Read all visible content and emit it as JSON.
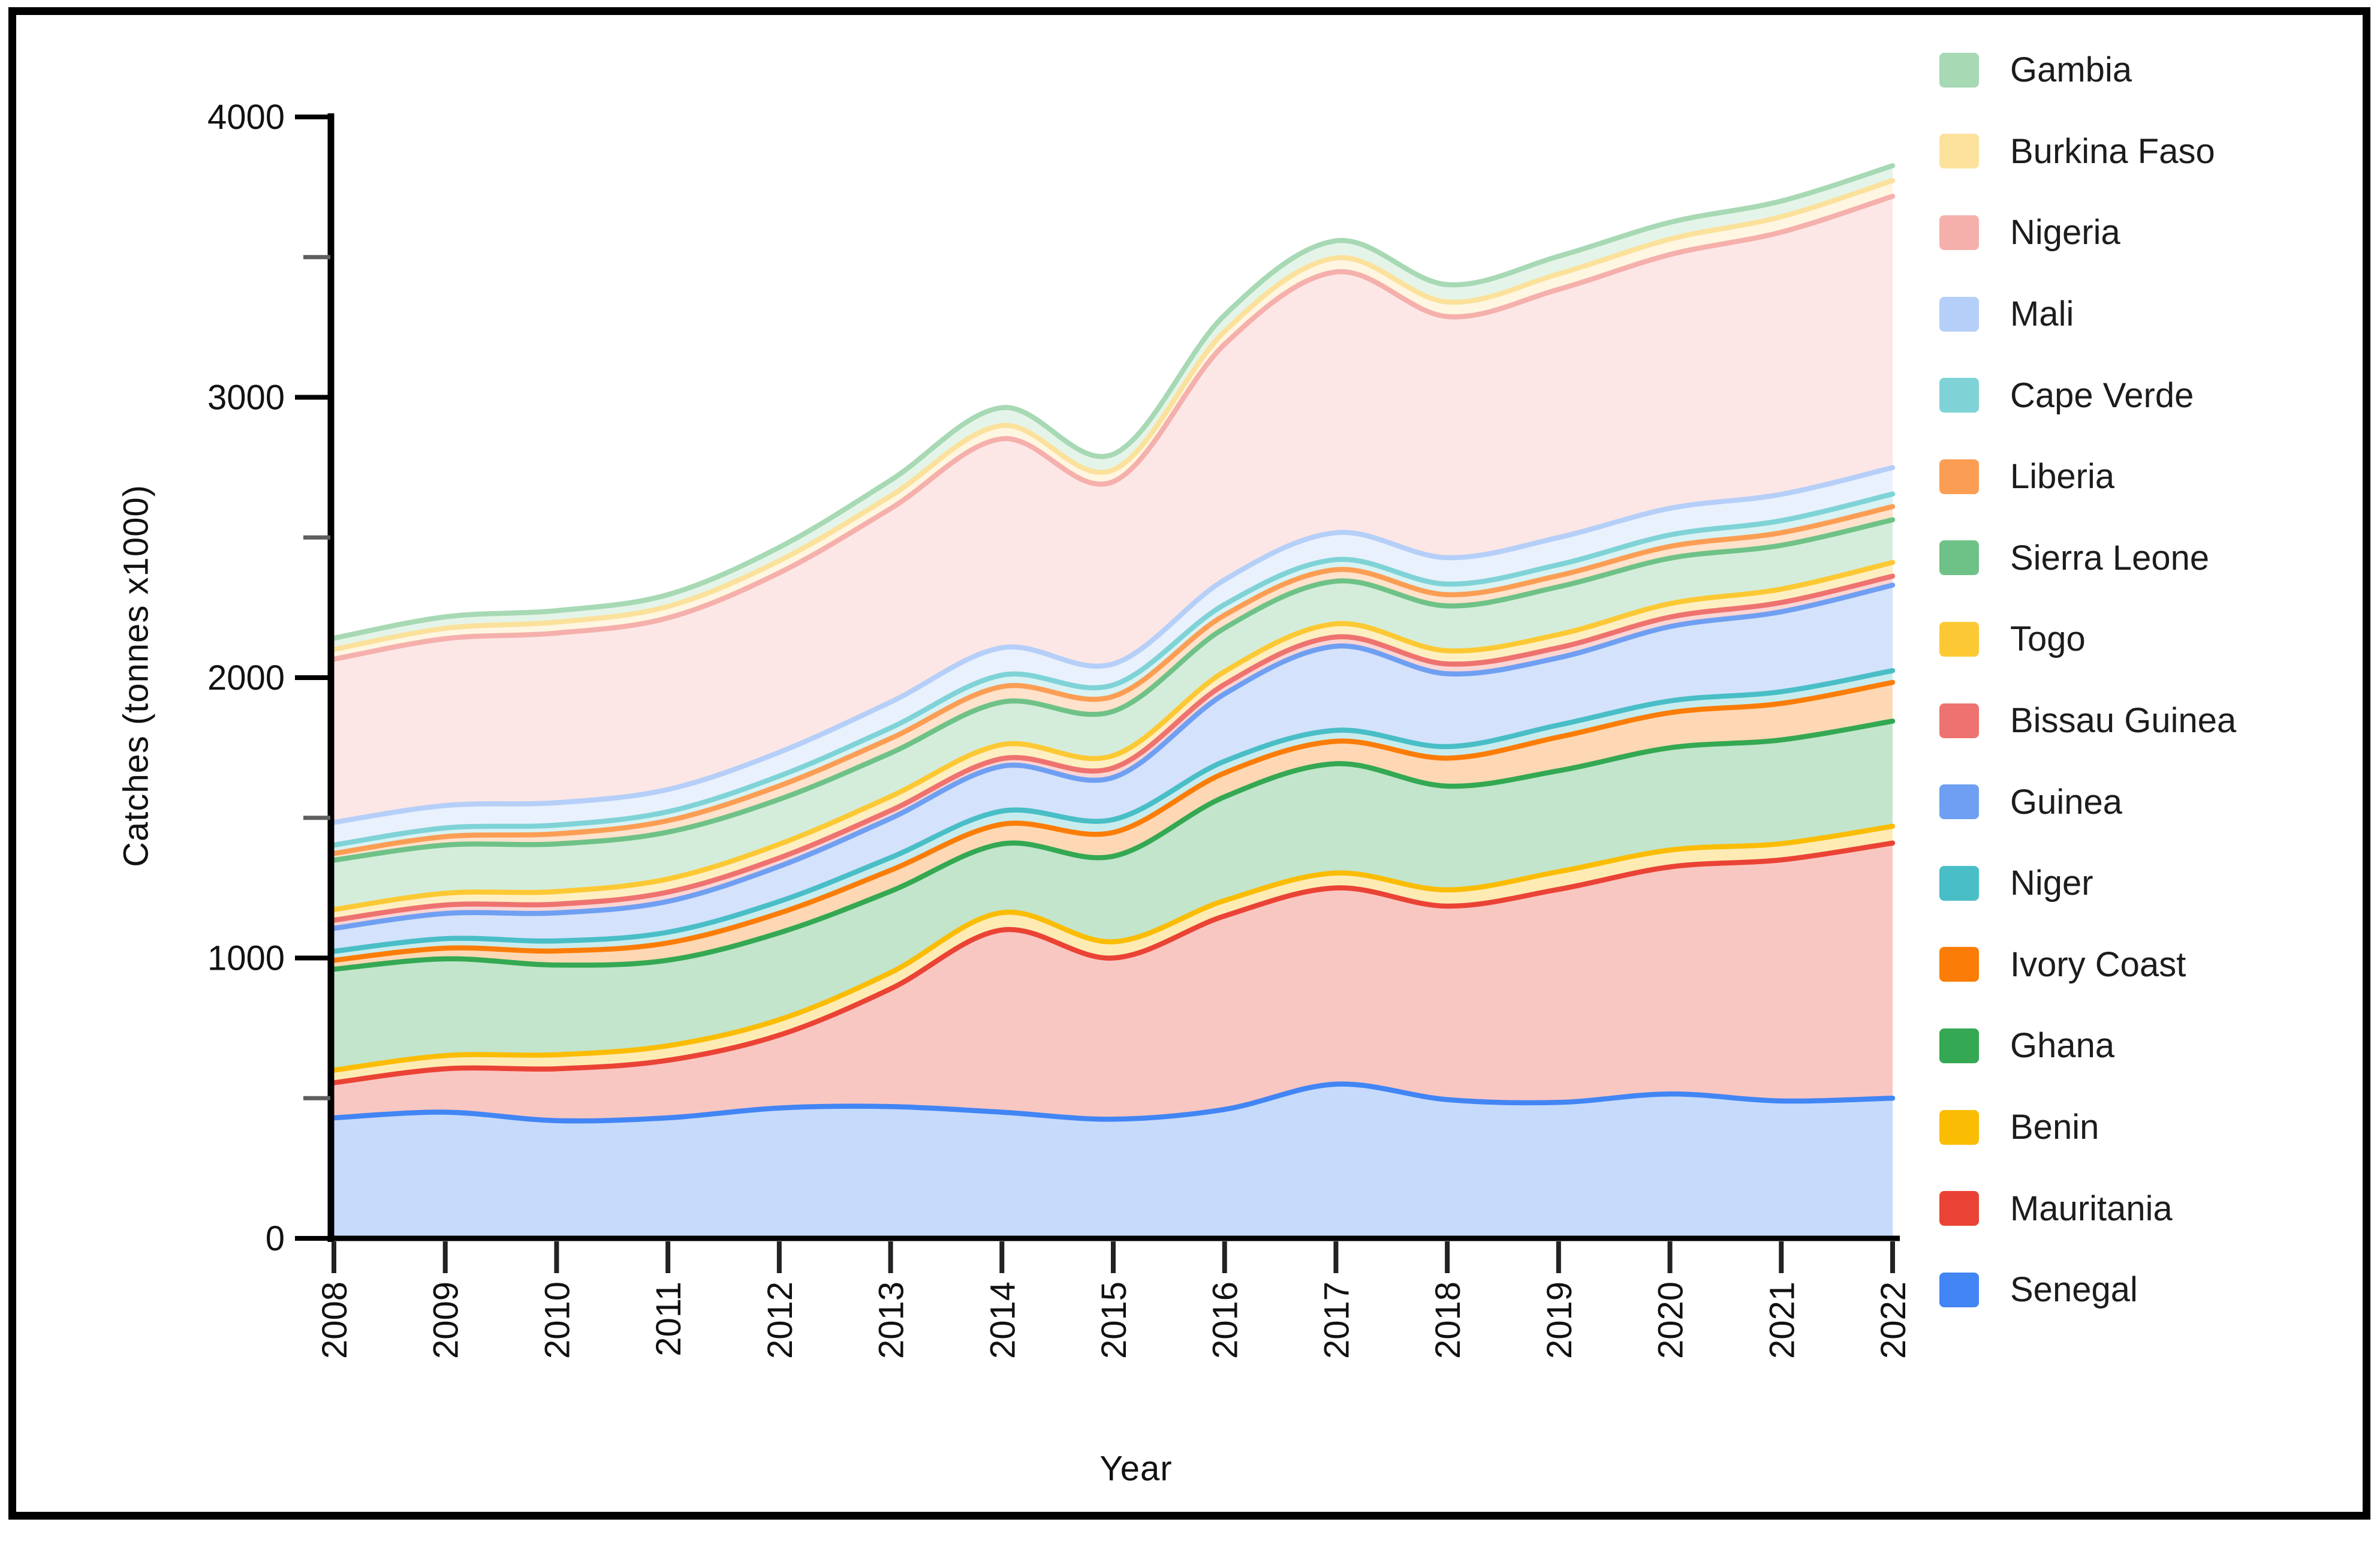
{
  "figure": {
    "background_color": "#ffffff",
    "frame_border_color": "#000000",
    "axis_line_color": "#000000"
  },
  "chart_data": {
    "type": "area",
    "stacked": true,
    "smoothed": true,
    "grid": false,
    "legend_position": "right",
    "xlabel": "Year",
    "ylabel": "Catches (tonnes x1000)",
    "x": [
      2008,
      2009,
      2010,
      2011,
      2012,
      2013,
      2014,
      2015,
      2016,
      2017,
      2018,
      2019,
      2020,
      2021,
      2022
    ],
    "ylim": [
      0,
      4000
    ],
    "y_ticks_labeled": [
      0,
      1000,
      2000,
      3000,
      4000
    ],
    "y_ticks_minor": [
      500,
      1500,
      2500,
      3500
    ],
    "series_bottom_to_top": [
      {
        "name": "Senegal",
        "color": "#4285F4",
        "values": [
          430,
          450,
          420,
          430,
          465,
          470,
          450,
          425,
          460,
          550,
          495,
          485,
          515,
          490,
          500
        ]
      },
      {
        "name": "Mauritania",
        "color": "#EA4335",
        "values": [
          125,
          155,
          185,
          205,
          260,
          420,
          650,
          575,
          690,
          700,
          690,
          760,
          810,
          860,
          910
        ]
      },
      {
        "name": "Benin",
        "color": "#FBBC04",
        "values": [
          45,
          47,
          50,
          52,
          55,
          58,
          62,
          58,
          55,
          53,
          58,
          63,
          60,
          58,
          60
        ]
      },
      {
        "name": "Ghana",
        "color": "#34A853",
        "values": [
          360,
          345,
          320,
          305,
          310,
          290,
          245,
          305,
          370,
          390,
          370,
          360,
          365,
          370,
          375
        ]
      },
      {
        "name": "Ivory Coast",
        "color": "#FB7D07",
        "values": [
          32,
          38,
          50,
          62,
          70,
          75,
          70,
          85,
          85,
          80,
          100,
          120,
          125,
          130,
          138
        ]
      },
      {
        "name": "Niger",
        "color": "#49BEC6",
        "values": [
          32,
          34,
          36,
          38,
          42,
          45,
          47,
          46,
          42,
          39,
          41,
          43,
          42,
          42,
          42
        ]
      },
      {
        "name": "Guinea",
        "color": "#6F9FF2",
        "values": [
          82,
          90,
          100,
          110,
          125,
          140,
          160,
          150,
          240,
          300,
          260,
          240,
          265,
          285,
          305
        ]
      },
      {
        "name": "Bissau Guinea",
        "color": "#EE7370",
        "values": [
          29,
          30,
          31,
          33,
          30,
          28,
          27,
          34,
          34,
          33,
          35,
          36,
          34,
          33,
          32
        ]
      },
      {
        "name": "Togo",
        "color": "#FCC934",
        "values": [
          38,
          42,
          45,
          47,
          49,
          50,
          50,
          44,
          46,
          47,
          47,
          47,
          48,
          48,
          49
        ]
      },
      {
        "name": "Sierra Leone",
        "color": "#6FC287",
        "values": [
          176,
          172,
          170,
          167,
          160,
          155,
          152,
          158,
          155,
          152,
          160,
          170,
          162,
          156,
          152
        ]
      },
      {
        "name": "Liberia",
        "color": "#FB9E54",
        "values": [
          24,
          30,
          36,
          41,
          48,
          52,
          55,
          53,
          46,
          41,
          40,
          40,
          42,
          45,
          47
        ]
      },
      {
        "name": "Cape Verde",
        "color": "#7FD3D6",
        "values": [
          30,
          31,
          31,
          32,
          35,
          38,
          41,
          41,
          38,
          36,
          38,
          39,
          41,
          43,
          45
        ]
      },
      {
        "name": "Mali",
        "color": "#B5CFF8",
        "values": [
          81,
          80,
          80,
          79,
          85,
          92,
          98,
          75,
          88,
          96,
          94,
          97,
          95,
          94,
          94
        ]
      },
      {
        "name": "Nigeria",
        "color": "#F5B0AC",
        "values": [
          582,
          595,
          605,
          612,
          640,
          690,
          745,
          650,
          840,
          930,
          860,
          885,
          905,
          935,
          968
        ]
      },
      {
        "name": "Burkina Faso",
        "color": "#FBE19B",
        "values": [
          35,
          37,
          39,
          41,
          43,
          45,
          47,
          42,
          46,
          50,
          52,
          55,
          55,
          55,
          56
        ]
      },
      {
        "name": "Gambia",
        "color": "#A7D9B4",
        "values": [
          40,
          41,
          41,
          42,
          48,
          56,
          64,
          56,
          58,
          61,
          62,
          63,
          60,
          56,
          53
        ]
      }
    ]
  }
}
